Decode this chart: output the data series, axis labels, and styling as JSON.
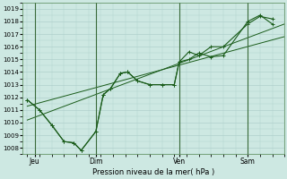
{
  "bg_color": "#cde8e2",
  "grid_major_color": "#b0d0cc",
  "grid_minor_color": "#b0d0cc",
  "line_color": "#1a5c1a",
  "vline_color": "#3a6a3a",
  "xlabel": "Pression niveau de la mer( hPa )",
  "ylim": [
    1007.5,
    1019.5
  ],
  "xlim": [
    -0.2,
    10.5
  ],
  "yticks": [
    1008,
    1009,
    1010,
    1011,
    1012,
    1013,
    1014,
    1015,
    1016,
    1017,
    1018,
    1019
  ],
  "xtick_labels": [
    "Jeu",
    "Dim",
    "Ven",
    "Sam"
  ],
  "xtick_positions": [
    0.3,
    2.8,
    6.2,
    9.0
  ],
  "vline_positions": [
    0.3,
    2.8,
    6.2,
    9.0
  ],
  "zigzag_x": [
    0.0,
    0.5,
    1.0,
    1.5,
    1.9,
    2.2,
    2.8,
    3.1,
    3.4,
    3.8,
    4.1,
    4.5,
    5.0,
    5.5,
    6.0,
    6.2,
    6.6,
    7.0,
    7.5,
    8.0,
    9.0,
    9.5,
    10.0
  ],
  "zigzag_y": [
    1011.8,
    1011.0,
    1009.8,
    1008.5,
    1008.4,
    1007.8,
    1009.3,
    1012.2,
    1012.7,
    1013.9,
    1014.0,
    1013.3,
    1013.0,
    1013.0,
    1013.0,
    1014.8,
    1015.0,
    1015.5,
    1015.2,
    1015.3,
    1018.0,
    1018.5,
    1017.8
  ],
  "smooth_x": [
    0.0,
    0.5,
    1.0,
    1.5,
    1.9,
    2.2,
    2.8,
    3.1,
    3.4,
    3.8,
    4.1,
    4.5,
    5.0,
    5.5,
    6.0,
    6.2,
    6.6,
    7.0,
    7.5,
    8.0,
    9.0,
    9.5,
    10.0
  ],
  "smooth_y": [
    1011.8,
    1011.0,
    1009.8,
    1008.5,
    1008.4,
    1007.8,
    1009.3,
    1012.2,
    1012.7,
    1013.9,
    1014.0,
    1013.3,
    1013.0,
    1013.0,
    1013.0,
    1014.8,
    1015.6,
    1015.3,
    1016.0,
    1016.0,
    1017.8,
    1018.4,
    1018.2
  ],
  "trend1_x": [
    0.0,
    10.5
  ],
  "trend1_y": [
    1011.3,
    1016.8
  ],
  "trend2_x": [
    0.0,
    10.5
  ],
  "trend2_y": [
    1010.2,
    1017.8
  ]
}
